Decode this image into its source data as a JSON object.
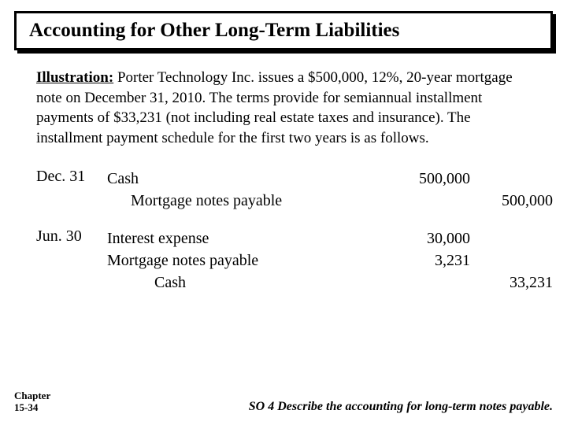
{
  "title": "Accounting for Other Long-Term Liabilities",
  "illustration": {
    "label": "Illustration:",
    "text": " Porter Technology Inc. issues a $500,000, 12%, 20-year mortgage note on December 31, 2010. The terms provide for semiannual installment payments of $33,231 (not including real estate taxes and insurance). The installment payment schedule for the first two years is as follows."
  },
  "entries": [
    {
      "date": "Dec. 31",
      "lines": [
        {
          "account": "Cash",
          "indent": 0,
          "debit": "500,000",
          "credit": ""
        },
        {
          "account": "Mortgage notes payable",
          "indent": 1,
          "debit": "",
          "credit": "500,000"
        }
      ]
    },
    {
      "date": "Jun. 30",
      "lines": [
        {
          "account": "Interest expense",
          "indent": 0,
          "debit": "30,000",
          "credit": ""
        },
        {
          "account": "Mortgage notes payable",
          "indent": 0,
          "debit": "3,231",
          "credit": ""
        },
        {
          "account": "Cash",
          "indent": 2,
          "debit": "",
          "credit": "33,231"
        }
      ]
    }
  ],
  "footer": {
    "chapter_line1": "Chapter",
    "chapter_line2": "15-34",
    "so": "SO 4 Describe the accounting for long-term notes payable."
  },
  "colors": {
    "background": "#ffffff",
    "text": "#000000",
    "border": "#000000"
  }
}
